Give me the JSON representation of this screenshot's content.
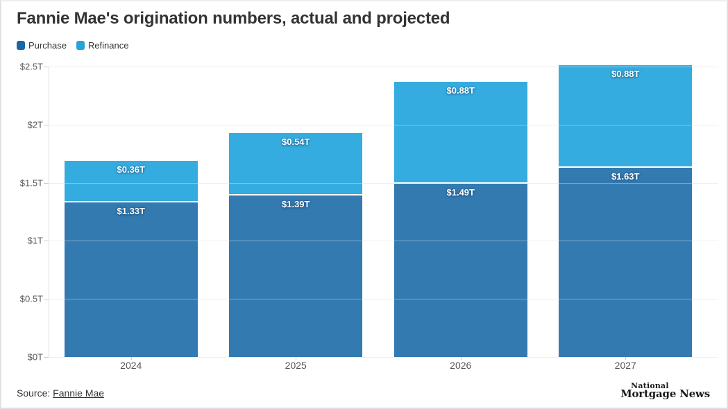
{
  "title": "Fannie Mae's origination numbers, actual and projected",
  "legend": [
    {
      "label": "Purchase",
      "color": "#1a67a9"
    },
    {
      "label": "Refinance",
      "color": "#27a3db"
    }
  ],
  "chart_data": {
    "type": "bar",
    "stacked": true,
    "title": "Fannie Mae's origination numbers, actual and projected",
    "categories": [
      "2024",
      "2025",
      "2026",
      "2027"
    ],
    "series": [
      {
        "name": "Purchase",
        "color": "#337ab1",
        "values": [
          1.33,
          1.39,
          1.49,
          1.63
        ],
        "labels": [
          "$1.33T",
          "$1.39T",
          "$1.49T",
          "$1.63T"
        ]
      },
      {
        "name": "Refinance",
        "color": "#35acdf",
        "values": [
          0.36,
          0.54,
          0.88,
          0.88
        ],
        "labels": [
          "$0.36T",
          "$0.54T",
          "$0.88T",
          "$0.88T"
        ]
      }
    ],
    "xlabel": "",
    "ylabel": "",
    "ylim": [
      0,
      2.5
    ],
    "yticks": [
      {
        "value": 0,
        "label": "$0T"
      },
      {
        "value": 0.5,
        "label": "$0.5T"
      },
      {
        "value": 1,
        "label": "$1T"
      },
      {
        "value": 1.5,
        "label": "$1.5T"
      },
      {
        "value": 2,
        "label": "$2T"
      },
      {
        "value": 2.5,
        "label": "$2.5T"
      }
    ],
    "grid": true,
    "legend_position": "top-left"
  },
  "footer": {
    "source_prefix": "Source:",
    "source_link": "Fannie Mae",
    "logo_line1": "National",
    "logo_line2": "Mortgage News"
  }
}
